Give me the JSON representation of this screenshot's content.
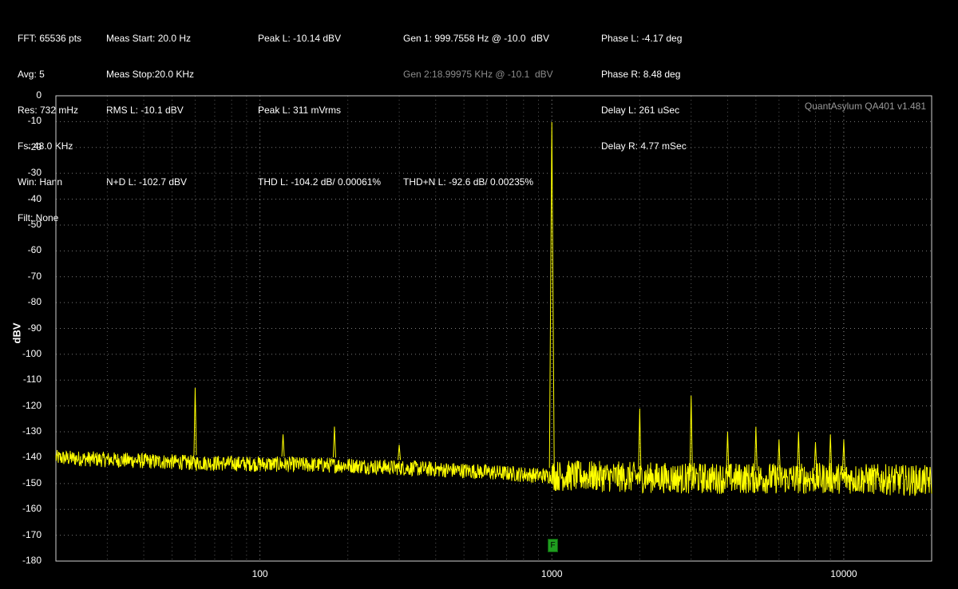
{
  "status_panel": {
    "col1": [
      "FFT: 65536 pts",
      "Avg: 5",
      "Res: 732 mHz",
      "Fs: 48.0 KHz",
      "Win: Hann",
      "Filt: None"
    ],
    "col2": [
      "Meas Start: 20.0 Hz",
      "Meas Stop:20.0 KHz",
      "RMS L: -10.1 dBV",
      "",
      "N+D L: -102.7 dBV"
    ],
    "col3": [
      "Peak L: -10.14 dBV",
      "",
      "Peak L: 311 mVrms",
      "",
      "THD L: -104.2 dB/ 0.00061%"
    ],
    "col4": [
      "Gen 1: 999.7558 Hz @ -10.0  dBV",
      "Gen 2:18.99975 KHz @ -10.1  dBV",
      "",
      "",
      "THD+N L: -92.6 dB/ 0.00235%"
    ],
    "col5": [
      "Phase L: -4.17 deg",
      "Phase R: 8.48 deg",
      "Delay L: 261 uSec",
      "Delay R: 4.77 mSec"
    ]
  },
  "watermark": "QuantAsylum QA401 v1.481",
  "marker_label": "F",
  "chart_data": {
    "type": "line",
    "ylabel": "dBV",
    "xscale": "log",
    "xlim": [
      20,
      20000
    ],
    "ylim": [
      -180,
      0
    ],
    "yticks": [
      0,
      -10,
      -20,
      -30,
      -40,
      -50,
      -60,
      -70,
      -80,
      -90,
      -100,
      -110,
      -120,
      -130,
      -140,
      -150,
      -160,
      -170,
      -180
    ],
    "xticks": [
      100,
      1000,
      10000
    ],
    "grid": true,
    "color": "#ffff00",
    "noise_floor": [
      [
        20,
        -140
      ],
      [
        60,
        -142
      ],
      [
        200,
        -143
      ],
      [
        500,
        -145
      ],
      [
        950,
        -147
      ],
      [
        1100,
        -147
      ],
      [
        3000,
        -148
      ],
      [
        10000,
        -148
      ],
      [
        20000,
        -149
      ]
    ],
    "peaks": [
      {
        "x": 60,
        "y": -113
      },
      {
        "x": 120,
        "y": -131
      },
      {
        "x": 180,
        "y": -128
      },
      {
        "x": 300,
        "y": -135
      },
      {
        "x": 999.76,
        "y": -10.14
      },
      {
        "x": 2000,
        "y": -121
      },
      {
        "x": 3000,
        "y": -116
      },
      {
        "x": 4000,
        "y": -130
      },
      {
        "x": 5000,
        "y": -128
      },
      {
        "x": 6000,
        "y": -133
      },
      {
        "x": 7000,
        "y": -130
      },
      {
        "x": 8000,
        "y": -134
      },
      {
        "x": 9000,
        "y": -131
      },
      {
        "x": 10000,
        "y": -133
      }
    ]
  }
}
